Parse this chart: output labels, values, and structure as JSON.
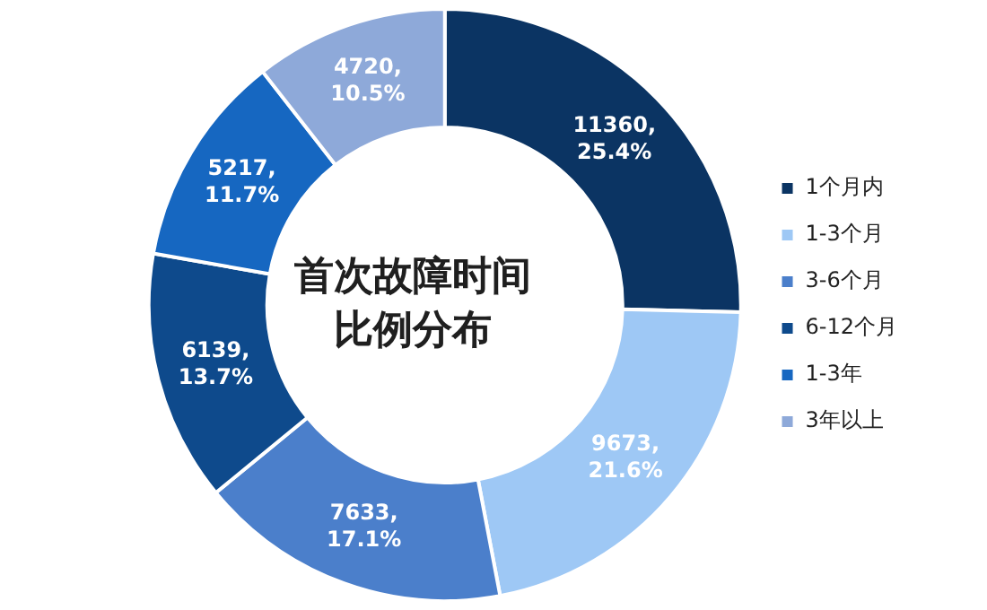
{
  "chart_data": {
    "type": "donut",
    "title": "首次故障时间比例分布",
    "categories": [
      "1个月内",
      "1-3个月",
      "3-6个月",
      "6-12个月",
      "1-3年",
      "3年以上"
    ],
    "values": [
      11360,
      9673,
      7633,
      6139,
      5217,
      4720
    ],
    "colors": [
      "#0b3463",
      "#9ec8f5",
      "#4b7fcb",
      "#0e4a8c",
      "#1667c1",
      "#8ea9d9"
    ],
    "value_labels": [
      "11360,\n25.4%",
      "9673,\n21.6%",
      "7633,\n17.1%",
      "6139,\n13.7%",
      "5217,\n11.7%",
      "4720,\n10.5%"
    ],
    "legend": "right"
  }
}
